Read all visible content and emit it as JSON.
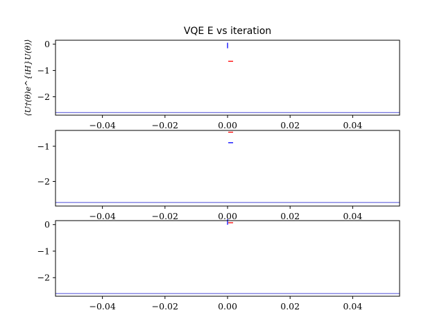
{
  "figure": {
    "title": "VQE E vs iteration",
    "ylabel": "⟨U†(θ)e^{iH}U(θ)⟩"
  },
  "colors": {
    "blue": "#0000ff",
    "red": "#ff0000",
    "ref_line": "#4b4bd6",
    "axes": "#000000"
  },
  "chart_data": [
    {
      "type": "line",
      "xlim": [
        -0.055,
        0.055
      ],
      "ylim": [
        -2.7,
        0.15
      ],
      "xticks": [
        -0.04,
        -0.02,
        0.0,
        0.02,
        0.04
      ],
      "xtick_labels": [
        "−0.04",
        "−0.02",
        "0.00",
        "0.02",
        "0.04"
      ],
      "yticks": [
        0,
        -1,
        -2
      ],
      "ytick_labels": [
        "0",
        "−1",
        "−2"
      ],
      "series": [
        {
          "color": "blue",
          "x": [
            0.0
          ],
          "y": [
            -0.05
          ],
          "marker": "vline"
        },
        {
          "color": "red",
          "x": [
            0.001
          ],
          "y": [
            -0.65
          ],
          "marker": "hline"
        }
      ],
      "reference_line": -2.6
    },
    {
      "type": "line",
      "xlim": [
        -0.055,
        0.055
      ],
      "ylim": [
        -2.7,
        -0.55
      ],
      "xticks": [
        -0.04,
        -0.02,
        0.0,
        0.02,
        0.04
      ],
      "xtick_labels": [
        "−0.04",
        "−0.02",
        "0.00",
        "0.02",
        "0.04"
      ],
      "yticks": [
        -1,
        -2
      ],
      "ytick_labels": [
        "−1",
        "−2"
      ],
      "series": [
        {
          "color": "blue",
          "x": [
            0.001
          ],
          "y": [
            -0.9
          ],
          "marker": "hline"
        },
        {
          "color": "red",
          "x": [
            0.001
          ],
          "y": [
            -0.6
          ],
          "marker": "hline"
        }
      ],
      "reference_line": -2.6
    },
    {
      "type": "line",
      "xlim": [
        -0.055,
        0.055
      ],
      "ylim": [
        -2.7,
        0.15
      ],
      "xticks": [
        -0.04,
        -0.02,
        0.0,
        0.02,
        0.04
      ],
      "xtick_labels": [
        "−0.04",
        "−0.02",
        "0.00",
        "0.02",
        "0.04"
      ],
      "yticks": [
        0,
        -1,
        -2
      ],
      "ytick_labels": [
        "0",
        "−1",
        "−2"
      ],
      "series": [
        {
          "color": "blue",
          "x": [
            0.0
          ],
          "y": [
            0.1
          ],
          "marker": "vline"
        },
        {
          "color": "red",
          "x": [
            0.001
          ],
          "y": [
            0.07
          ],
          "marker": "hline"
        }
      ],
      "reference_line": -2.6
    }
  ]
}
